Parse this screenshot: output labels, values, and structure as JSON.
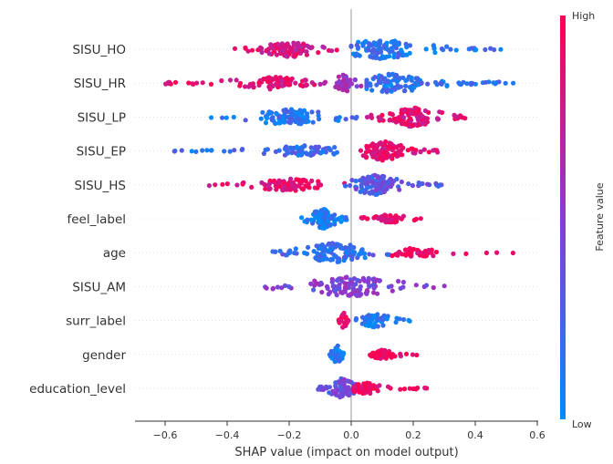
{
  "chart_data": {
    "type": "scatter",
    "subtype": "shap-beeswarm",
    "xlabel": "SHAP value (impact on model output)",
    "xlim": [
      -0.65,
      0.61
    ],
    "xticks": [
      -0.6,
      -0.4,
      -0.2,
      0.0,
      0.2,
      0.4,
      0.6
    ],
    "xtick_labels": [
      "−0.6",
      "−0.4",
      "−0.2",
      "0.0",
      "0.2",
      "0.4",
      "0.6"
    ],
    "zero_line": true,
    "colorbar": {
      "label": "Feature value",
      "high_label": "High",
      "low_label": "Low",
      "high_color": "#ff0052",
      "low_color": "#008bfb"
    },
    "features": [
      {
        "name": "SISU_HO",
        "groups": [
          {
            "lo": -0.39,
            "hi": -0.03,
            "center": -0.2,
            "n": 95,
            "amp": 9,
            "color": 0.82
          },
          {
            "lo": 0.0,
            "hi": 0.51,
            "center": 0.1,
            "n": 115,
            "amp": 11,
            "color": 0.15
          }
        ]
      },
      {
        "name": "SISU_HR",
        "groups": [
          {
            "lo": -0.6,
            "hi": -0.02,
            "center": -0.25,
            "n": 90,
            "amp": 7,
            "color": 0.88
          },
          {
            "lo": -0.1,
            "hi": 0.05,
            "center": -0.02,
            "n": 45,
            "amp": 10,
            "color": 0.55
          },
          {
            "lo": 0.05,
            "hi": 0.53,
            "center": 0.13,
            "n": 110,
            "amp": 11,
            "color": 0.15
          }
        ]
      },
      {
        "name": "SISU_LP",
        "groups": [
          {
            "lo": -0.48,
            "hi": 0.02,
            "center": -0.2,
            "n": 100,
            "amp": 9,
            "color": 0.15
          },
          {
            "lo": 0.05,
            "hi": 0.37,
            "center": 0.2,
            "n": 115,
            "amp": 11,
            "color": 0.85
          }
        ]
      },
      {
        "name": "SISU_EP",
        "groups": [
          {
            "lo": -0.59,
            "hi": -0.01,
            "center": -0.15,
            "n": 80,
            "amp": 6,
            "color": 0.2
          },
          {
            "lo": 0.03,
            "hi": 0.3,
            "center": 0.1,
            "n": 115,
            "amp": 11,
            "color": 0.9
          }
        ]
      },
      {
        "name": "SISU_HS",
        "groups": [
          {
            "lo": -0.46,
            "hi": -0.02,
            "center": -0.2,
            "n": 85,
            "amp": 7,
            "color": 0.88
          },
          {
            "lo": -0.02,
            "hi": 0.3,
            "center": 0.08,
            "n": 120,
            "amp": 11,
            "color": 0.3
          }
        ]
      },
      {
        "name": "feel_label",
        "groups": [
          {
            "lo": -0.17,
            "hi": -0.01,
            "center": -0.09,
            "n": 90,
            "amp": 11,
            "color": 0.05
          },
          {
            "lo": 0.02,
            "hi": 0.24,
            "center": 0.12,
            "n": 60,
            "amp": 5,
            "color": 0.95
          }
        ]
      },
      {
        "name": "age",
        "groups": [
          {
            "lo": -0.26,
            "hi": 0.14,
            "center": -0.05,
            "n": 120,
            "amp": 11,
            "color": 0.2
          },
          {
            "lo": 0.12,
            "hi": 0.55,
            "center": 0.2,
            "n": 45,
            "amp": 5,
            "color": 0.92
          }
        ]
      },
      {
        "name": "SISU_AM",
        "groups": [
          {
            "lo": -0.28,
            "hi": 0.31,
            "center": 0.0,
            "n": 120,
            "amp": 11,
            "color": 0.45
          }
        ]
      },
      {
        "name": "surr_label",
        "groups": [
          {
            "lo": -0.04,
            "hi": -0.01,
            "center": -0.025,
            "n": 30,
            "amp": 10,
            "color": 1.0
          },
          {
            "lo": 0.01,
            "hi": 0.19,
            "center": 0.08,
            "n": 55,
            "amp": 8,
            "color": 0.1
          }
        ]
      },
      {
        "name": "gender",
        "groups": [
          {
            "lo": -0.07,
            "hi": -0.02,
            "center": -0.045,
            "n": 45,
            "amp": 11,
            "color": 0.05
          },
          {
            "lo": 0.03,
            "hi": 0.22,
            "center": 0.1,
            "n": 50,
            "amp": 5,
            "color": 0.95
          }
        ]
      },
      {
        "name": "education_level",
        "groups": [
          {
            "lo": -0.12,
            "hi": 0.02,
            "center": -0.03,
            "n": 80,
            "amp": 11,
            "color": 0.4
          },
          {
            "lo": 0.0,
            "hi": 0.25,
            "center": 0.05,
            "n": 60,
            "amp": 6,
            "color": 0.92
          }
        ]
      }
    ]
  }
}
